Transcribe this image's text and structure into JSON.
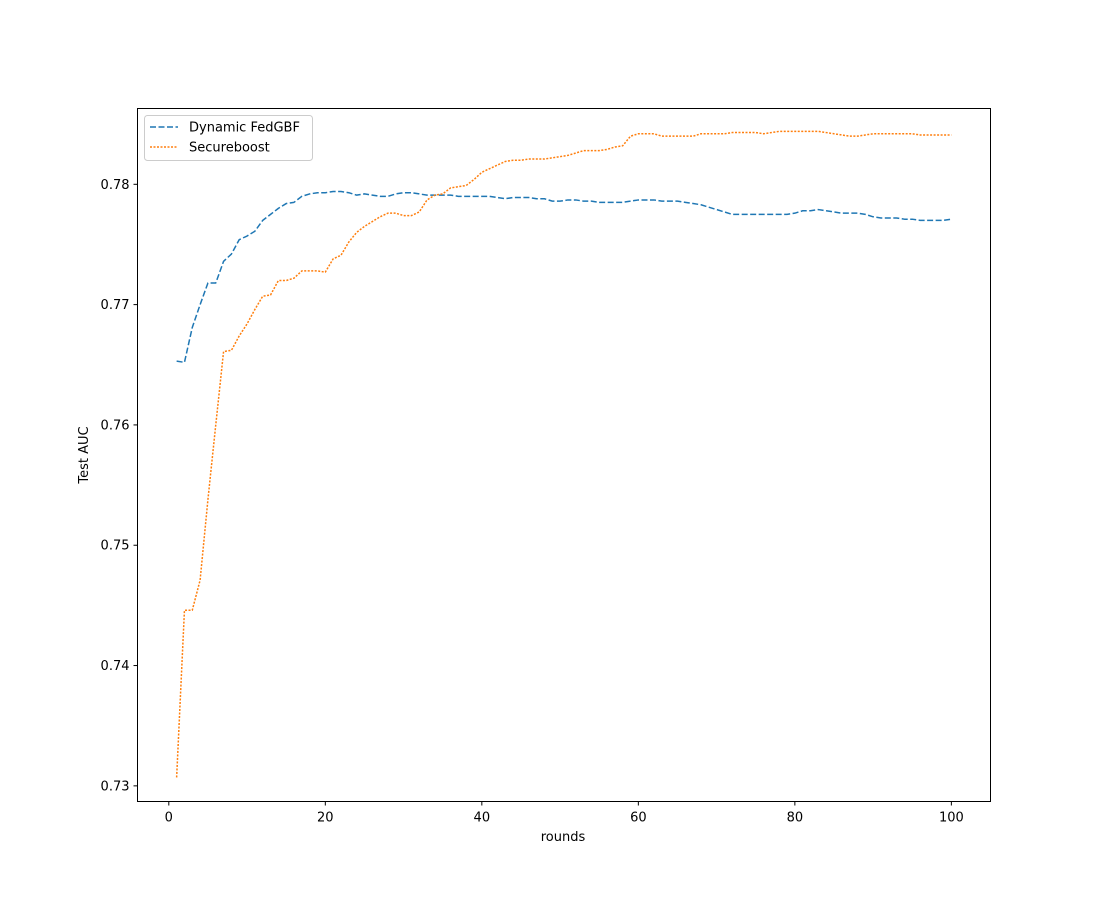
{
  "chart_data": {
    "type": "line",
    "xlabel": "rounds",
    "ylabel": "Test AUC",
    "xlim": [
      -4,
      105
    ],
    "ylim": [
      0.7287,
      0.7863
    ],
    "xticks": [
      0,
      20,
      40,
      60,
      80,
      100
    ],
    "xtick_labels": [
      "0",
      "20",
      "40",
      "60",
      "80",
      "100"
    ],
    "yticks": [
      0.73,
      0.74,
      0.75,
      0.76,
      0.77,
      0.78
    ],
    "ytick_labels": [
      "0.73",
      "0.74",
      "0.75",
      "0.76",
      "0.77",
      "0.78"
    ],
    "grid": false,
    "legend_position": "upper-left",
    "x": [
      1,
      2,
      3,
      4,
      5,
      6,
      7,
      8,
      9,
      10,
      11,
      12,
      13,
      14,
      15,
      16,
      17,
      18,
      19,
      20,
      21,
      22,
      23,
      24,
      25,
      26,
      27,
      28,
      29,
      30,
      31,
      32,
      33,
      34,
      35,
      36,
      37,
      38,
      39,
      40,
      41,
      42,
      43,
      44,
      45,
      46,
      47,
      48,
      49,
      50,
      51,
      52,
      53,
      54,
      55,
      56,
      57,
      58,
      59,
      60,
      61,
      62,
      63,
      64,
      65,
      66,
      67,
      68,
      69,
      70,
      71,
      72,
      73,
      74,
      75,
      76,
      77,
      78,
      79,
      80,
      81,
      82,
      83,
      84,
      85,
      86,
      87,
      88,
      89,
      90,
      91,
      92,
      93,
      94,
      95,
      96,
      97,
      98,
      99,
      100
    ],
    "series": [
      {
        "name": "Dynamic FedGBF",
        "color": "#1f77b4",
        "style": "dashed",
        "values": [
          0.7653,
          0.7652,
          0.7681,
          0.77,
          0.7718,
          0.7718,
          0.7736,
          0.7742,
          0.7754,
          0.7757,
          0.7761,
          0.777,
          0.7775,
          0.778,
          0.7784,
          0.7785,
          0.779,
          0.7792,
          0.7793,
          0.7793,
          0.7794,
          0.7794,
          0.7793,
          0.7791,
          0.7792,
          0.7791,
          0.779,
          0.779,
          0.7792,
          0.7793,
          0.7793,
          0.7792,
          0.7791,
          0.7791,
          0.7791,
          0.7791,
          0.779,
          0.779,
          0.779,
          0.779,
          0.779,
          0.7789,
          0.7788,
          0.7789,
          0.7789,
          0.7789,
          0.7788,
          0.7788,
          0.7786,
          0.7786,
          0.7787,
          0.7787,
          0.7786,
          0.7786,
          0.7785,
          0.7785,
          0.7785,
          0.7785,
          0.7786,
          0.7787,
          0.7787,
          0.7787,
          0.7786,
          0.7786,
          0.7786,
          0.7785,
          0.7784,
          0.7783,
          0.7781,
          0.7779,
          0.7777,
          0.7775,
          0.7775,
          0.7775,
          0.7775,
          0.7775,
          0.7775,
          0.7775,
          0.7775,
          0.7776,
          0.7778,
          0.7778,
          0.7779,
          0.7778,
          0.7777,
          0.7776,
          0.7776,
          0.7776,
          0.7775,
          0.7773,
          0.7772,
          0.7772,
          0.7772,
          0.7771,
          0.7771,
          0.777,
          0.777,
          0.777,
          0.777,
          0.7771
        ]
      },
      {
        "name": "Secureboost",
        "color": "#ff7f0e",
        "style": "dotted",
        "values": [
          0.7307,
          0.7446,
          0.7446,
          0.7471,
          0.7538,
          0.76,
          0.7661,
          0.7662,
          0.7674,
          0.7684,
          0.7696,
          0.7707,
          0.7708,
          0.772,
          0.772,
          0.7722,
          0.7728,
          0.7728,
          0.7728,
          0.7727,
          0.7738,
          0.7741,
          0.7752,
          0.776,
          0.7765,
          0.7769,
          0.7773,
          0.7776,
          0.7776,
          0.7774,
          0.7774,
          0.7777,
          0.7787,
          0.7791,
          0.7792,
          0.7797,
          0.7798,
          0.7799,
          0.7804,
          0.781,
          0.7813,
          0.7816,
          0.7819,
          0.782,
          0.782,
          0.7821,
          0.7821,
          0.7821,
          0.7822,
          0.7823,
          0.7824,
          0.7826,
          0.7828,
          0.7828,
          0.7828,
          0.7829,
          0.7831,
          0.7832,
          0.784,
          0.7842,
          0.7842,
          0.7842,
          0.784,
          0.784,
          0.784,
          0.784,
          0.784,
          0.7842,
          0.7842,
          0.7842,
          0.7842,
          0.7843,
          0.7843,
          0.7843,
          0.7843,
          0.7842,
          0.7843,
          0.7844,
          0.7844,
          0.7844,
          0.7844,
          0.7844,
          0.7844,
          0.7843,
          0.7842,
          0.7841,
          0.784,
          0.784,
          0.7841,
          0.7842,
          0.7842,
          0.7842,
          0.7842,
          0.7842,
          0.7842,
          0.7841,
          0.7841,
          0.7841,
          0.7841,
          0.7841
        ]
      }
    ]
  }
}
